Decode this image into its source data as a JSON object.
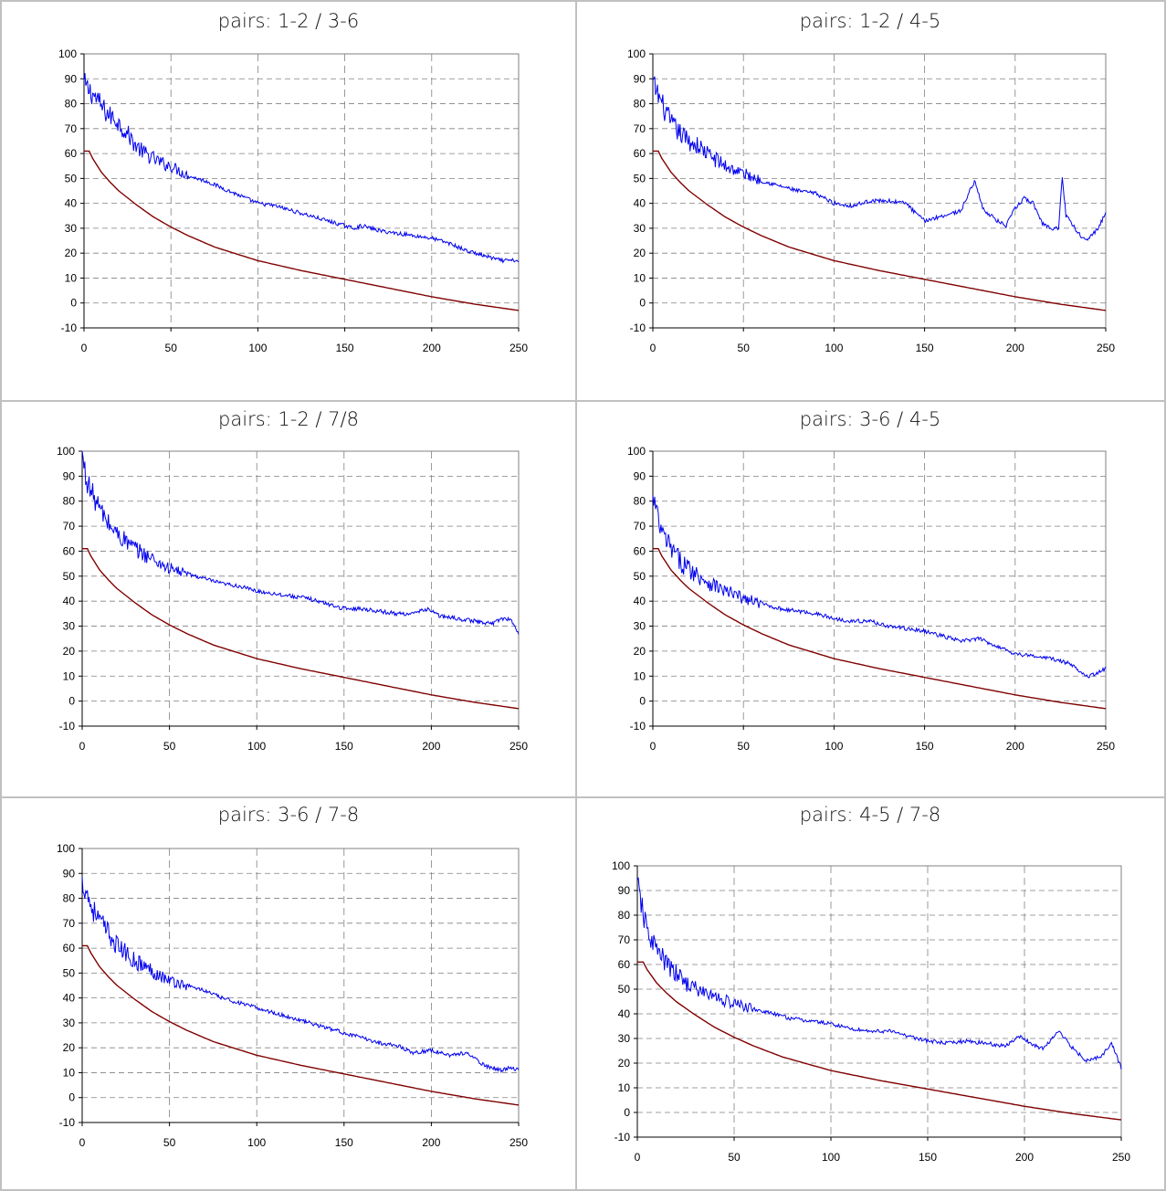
{
  "chart_data": [
    {
      "type": "line",
      "title": "pairs: 1-2 / 3-6",
      "xlim": [
        0,
        250
      ],
      "ylim": [
        -10,
        100
      ],
      "x_ticks": [
        0,
        50,
        100,
        150,
        200,
        250
      ],
      "y_ticks": [
        -10,
        0,
        10,
        20,
        30,
        40,
        50,
        60,
        70,
        80,
        90,
        100
      ],
      "grid": true,
      "series": [
        {
          "color": "#0000ee",
          "x": [
            0,
            2,
            5,
            8,
            10,
            12,
            15,
            18,
            20,
            25,
            30,
            35,
            40,
            45,
            50,
            55,
            60,
            70,
            80,
            90,
            100,
            110,
            120,
            130,
            140,
            150,
            155,
            160,
            165,
            170,
            180,
            190,
            200,
            210,
            220,
            230,
            240,
            250
          ],
          "values": [
            88,
            86,
            84,
            81,
            79,
            77,
            75,
            74,
            72,
            68,
            63,
            60,
            58,
            56,
            55,
            53,
            51,
            49,
            46,
            43,
            40,
            39,
            37,
            35,
            33,
            31,
            30,
            31,
            30,
            29,
            28,
            27,
            26,
            24,
            21,
            19,
            17,
            17
          ]
        },
        {
          "color": "#800000",
          "x": [
            0,
            3,
            5,
            10,
            15,
            20,
            30,
            40,
            50,
            60,
            75,
            100,
            125,
            150,
            175,
            200,
            225,
            250
          ],
          "values": [
            61,
            61,
            58,
            52.5,
            48.5,
            45,
            39.5,
            34.5,
            30.5,
            27,
            22.5,
            17,
            13,
            9.5,
            6,
            2.5,
            -0.5,
            -3
          ]
        }
      ]
    },
    {
      "type": "line",
      "title": "pairs: 1-2 / 4-5",
      "xlim": [
        0,
        250
      ],
      "ylim": [
        -10,
        100
      ],
      "x_ticks": [
        0,
        50,
        100,
        150,
        200,
        250
      ],
      "y_ticks": [
        -10,
        0,
        10,
        20,
        30,
        40,
        50,
        60,
        70,
        80,
        90,
        100
      ],
      "grid": true,
      "series": [
        {
          "color": "#0000ee",
          "x": [
            0,
            2,
            5,
            8,
            10,
            15,
            20,
            25,
            30,
            40,
            50,
            60,
            70,
            80,
            90,
            100,
            110,
            120,
            130,
            140,
            145,
            150,
            160,
            170,
            175,
            178,
            182,
            190,
            195,
            200,
            205,
            210,
            215,
            220,
            224,
            226,
            228,
            230,
            232,
            236,
            240,
            245,
            250
          ],
          "values": [
            88,
            85,
            80,
            75,
            72,
            68,
            65,
            63,
            60,
            55,
            52,
            49,
            47,
            45,
            44,
            40,
            39,
            41,
            41,
            40,
            36,
            33,
            35,
            37,
            45,
            49,
            38,
            33,
            31,
            38,
            42,
            40,
            32,
            30,
            30,
            51,
            35,
            34,
            31,
            27,
            26,
            29,
            36
          ]
        },
        {
          "color": "#800000",
          "x": [
            0,
            3,
            5,
            10,
            15,
            20,
            30,
            40,
            50,
            60,
            75,
            100,
            125,
            150,
            175,
            200,
            225,
            250
          ],
          "values": [
            61,
            61,
            58,
            52.5,
            48.5,
            45,
            39.5,
            34.5,
            30.5,
            27,
            22.5,
            17,
            13,
            9.5,
            6,
            2.5,
            -0.5,
            -3
          ]
        }
      ]
    },
    {
      "type": "line",
      "title": "pairs: 1-2 / 7/8",
      "xlim": [
        0,
        250
      ],
      "ylim": [
        -10,
        100
      ],
      "x_ticks": [
        0,
        50,
        100,
        150,
        200,
        250
      ],
      "y_ticks": [
        -10,
        0,
        10,
        20,
        30,
        40,
        50,
        60,
        70,
        80,
        90,
        100
      ],
      "grid": true,
      "series": [
        {
          "color": "#0000ee",
          "x": [
            0,
            2,
            5,
            10,
            15,
            20,
            30,
            40,
            50,
            60,
            70,
            80,
            90,
            100,
            110,
            120,
            130,
            140,
            150,
            160,
            170,
            180,
            190,
            198,
            205,
            215,
            225,
            235,
            240,
            245,
            250
          ],
          "values": [
            99,
            90,
            84,
            77,
            71,
            67,
            61,
            57,
            53,
            51,
            49,
            47,
            46,
            44,
            43,
            42,
            41,
            39,
            37,
            37,
            36,
            35,
            35,
            37,
            34,
            33,
            32,
            31,
            33,
            33,
            27
          ]
        },
        {
          "color": "#800000",
          "x": [
            0,
            3,
            5,
            10,
            15,
            20,
            30,
            40,
            50,
            60,
            75,
            100,
            125,
            150,
            175,
            200,
            225,
            250
          ],
          "values": [
            61,
            61,
            58,
            52.5,
            48.5,
            45,
            39.5,
            34.5,
            30.5,
            27,
            22.5,
            17,
            13,
            9.5,
            6,
            2.5,
            -0.5,
            -3
          ]
        }
      ]
    },
    {
      "type": "line",
      "title": "pairs: 3-6 / 4-5",
      "xlim": [
        0,
        250
      ],
      "ylim": [
        -10,
        100
      ],
      "x_ticks": [
        0,
        50,
        100,
        150,
        200,
        250
      ],
      "y_ticks": [
        -10,
        0,
        10,
        20,
        30,
        40,
        50,
        60,
        70,
        80,
        90,
        100
      ],
      "grid": true,
      "series": [
        {
          "color": "#0000ee",
          "x": [
            0,
            1,
            3,
            5,
            10,
            15,
            20,
            30,
            40,
            50,
            60,
            70,
            80,
            90,
            100,
            110,
            120,
            130,
            140,
            150,
            160,
            170,
            180,
            190,
            200,
            210,
            220,
            230,
            240,
            245,
            250
          ],
          "values": [
            80,
            79,
            72,
            67,
            61,
            56,
            53,
            48,
            44,
            41,
            39,
            37,
            36,
            35,
            33,
            32,
            32,
            30,
            29,
            28,
            26,
            24,
            25,
            22,
            19,
            18,
            17,
            15,
            10,
            11,
            13
          ]
        },
        {
          "color": "#800000",
          "x": [
            0,
            3,
            5,
            10,
            15,
            20,
            30,
            40,
            50,
            60,
            75,
            100,
            125,
            150,
            175,
            200,
            225,
            250
          ],
          "values": [
            61,
            61,
            58,
            52.5,
            48.5,
            45,
            39.5,
            34.5,
            30.5,
            27,
            22.5,
            17,
            13,
            9.5,
            6,
            2.5,
            -0.5,
            -3
          ]
        }
      ]
    },
    {
      "type": "line",
      "title": "pairs: 3-6 / 7-8",
      "xlim": [
        0,
        250
      ],
      "ylim": [
        -10,
        100
      ],
      "x_ticks": [
        0,
        50,
        100,
        150,
        200,
        250
      ],
      "y_ticks": [
        -10,
        0,
        10,
        20,
        30,
        40,
        50,
        60,
        70,
        80,
        90,
        100
      ],
      "grid": true,
      "series": [
        {
          "color": "#0000ee",
          "x": [
            0,
            1,
            3,
            5,
            10,
            15,
            20,
            30,
            40,
            50,
            60,
            70,
            80,
            90,
            100,
            110,
            120,
            130,
            140,
            150,
            160,
            170,
            180,
            190,
            200,
            210,
            220,
            230,
            240,
            245,
            250
          ],
          "values": [
            86,
            85,
            82,
            77,
            71,
            66,
            61,
            55,
            51,
            47,
            45,
            43,
            40,
            38,
            36,
            34,
            32,
            30,
            28,
            26,
            24,
            22,
            21,
            18,
            19,
            17,
            18,
            13,
            11,
            12,
            11
          ]
        },
        {
          "color": "#800000",
          "x": [
            0,
            3,
            5,
            10,
            15,
            20,
            30,
            40,
            50,
            60,
            75,
            100,
            125,
            150,
            175,
            200,
            225,
            250
          ],
          "values": [
            61,
            61,
            58,
            52.5,
            48.5,
            45,
            39.5,
            34.5,
            30.5,
            27,
            22.5,
            17,
            13,
            9.5,
            6,
            2.5,
            -0.5,
            -3
          ]
        }
      ]
    },
    {
      "type": "line",
      "title": "pairs: 4-5 / 7-8",
      "xlim": [
        0,
        250
      ],
      "ylim": [
        -10,
        100
      ],
      "x_ticks": [
        0,
        50,
        100,
        150,
        200,
        250
      ],
      "y_ticks": [
        -10,
        0,
        10,
        20,
        30,
        40,
        50,
        60,
        70,
        80,
        90,
        100
      ],
      "grid": true,
      "series": [
        {
          "color": "#0000ee",
          "x": [
            0,
            1,
            3,
            5,
            10,
            15,
            20,
            30,
            40,
            50,
            60,
            70,
            80,
            90,
            100,
            110,
            120,
            130,
            140,
            150,
            160,
            170,
            180,
            190,
            198,
            205,
            210,
            218,
            225,
            232,
            240,
            245,
            250
          ],
          "values": [
            91,
            90,
            80,
            74,
            66,
            60,
            56,
            50,
            47,
            44,
            42,
            40,
            38,
            37,
            36,
            34,
            33,
            33,
            31,
            29,
            28,
            29,
            28,
            27,
            31,
            27,
            26,
            33,
            26,
            21,
            23,
            28,
            18
          ]
        },
        {
          "color": "#800000",
          "x": [
            0,
            3,
            5,
            10,
            15,
            20,
            30,
            40,
            50,
            60,
            75,
            100,
            125,
            150,
            175,
            200,
            225,
            250
          ],
          "values": [
            61,
            61,
            58,
            52.5,
            48.5,
            45,
            39.5,
            34.5,
            30.5,
            27,
            22.5,
            17,
            13,
            9.5,
            6,
            2.5,
            -0.5,
            -3
          ]
        }
      ]
    }
  ]
}
